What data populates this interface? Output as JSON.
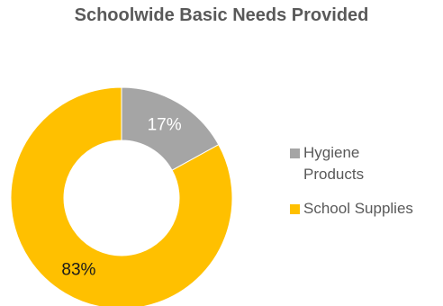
{
  "chart_data": {
    "type": "pie",
    "title": "Schoolwide Basic Needs Provided",
    "donut": true,
    "start_angle_deg": 0,
    "legend_position": "right",
    "slices": [
      {
        "name": "Hygiene Products",
        "value": 17,
        "label": "17%",
        "color": "#A5A5A5",
        "label_color": "#ffffff"
      },
      {
        "name": "School Supplies",
        "value": 83,
        "label": "83%",
        "color": "#FFC000",
        "label_color": "#1a1a1a"
      }
    ]
  }
}
